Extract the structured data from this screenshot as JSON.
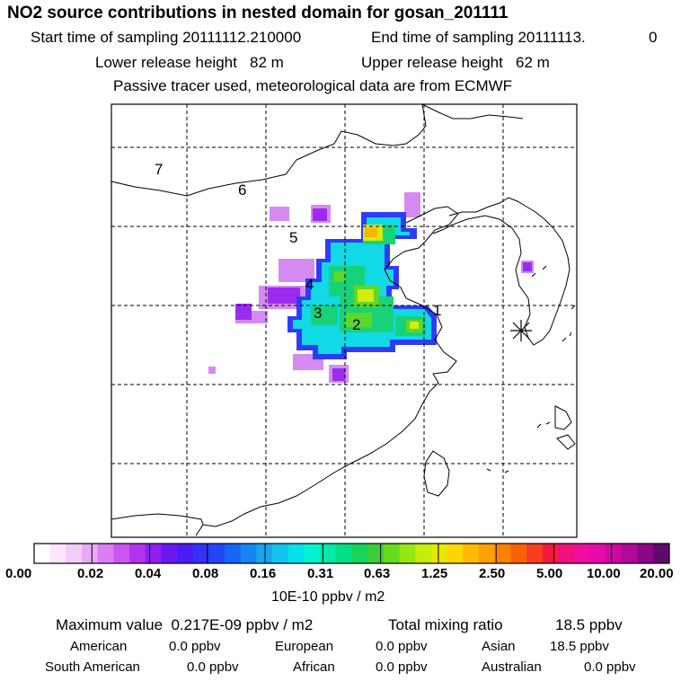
{
  "header": {
    "title": "NO2 source contributions in nested domain for gosan_201111",
    "start_label": "Start time of sampling 20111112.210000",
    "end_label": "End time of sampling 20111113.",
    "end_suffix": "0",
    "lower_release": "Lower release height   82 m",
    "upper_release": "Upper release height   62 m",
    "tracer_note": "Passive tracer used, meteorological data are from ECMWF"
  },
  "map": {
    "region_labels": [
      "1",
      "2",
      "3",
      "4",
      "5",
      "6",
      "7"
    ],
    "receptor_marker": "asterisk-icon"
  },
  "colorbar": {
    "tick_labels": [
      "0.00",
      "0.02",
      "0.04",
      "0.08",
      "0.16",
      "0.31",
      "0.63",
      "1.25",
      "2.50",
      "5.00",
      "10.00",
      "20.00"
    ],
    "unit": "10E-10 ppbv / m2",
    "colors": [
      "#ffffff",
      "#fbe6fb",
      "#f3ccf9",
      "#e9aaf5",
      "#dc7ef2",
      "#cc55f0",
      "#b233ec",
      "#8f1ff0",
      "#6a18f2",
      "#4b1cf5",
      "#3432f7",
      "#2446f7",
      "#1466f4",
      "#1485f3",
      "#18a4f1",
      "#14c4ee",
      "#00e3e8",
      "#00f2cf",
      "#00eaaa",
      "#00de87",
      "#17d45a",
      "#3ad03a",
      "#66dc1f",
      "#96e614",
      "#c4ec0c",
      "#e6e800",
      "#fad700",
      "#ffbb00",
      "#fea000",
      "#fe8200",
      "#fb6300",
      "#f83e1e",
      "#f21c3a",
      "#f0127a",
      "#ee0fa0",
      "#e70aa8",
      "#cc0aa0",
      "#b10a95",
      "#8c0686",
      "#5e0a66"
    ]
  },
  "footer": {
    "max_value": "Maximum value  0.217E-09 ppbv / m2",
    "total_mixing": "Total mixing ratio",
    "total_value": "18.5 ppbv",
    "american_label": "American",
    "american_value": "0.0 ppbv",
    "european_label": "European",
    "european_value": "0.0 ppbv",
    "asian_label": "Asian",
    "asian_value": "18.5 ppbv",
    "south_american_label": "South American",
    "south_american_value": "0.0 ppbv",
    "african_label": "African",
    "african_value": "0.0 ppbv",
    "australian_label": "Australian",
    "australian_value": "0.0 ppbv"
  }
}
